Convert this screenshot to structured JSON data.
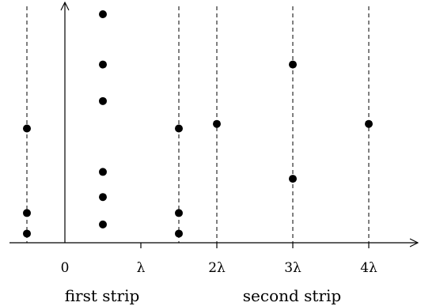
{
  "figure": {
    "x_ticks": [
      {
        "value": 0,
        "label": "0"
      },
      {
        "value": 1,
        "label": "λ"
      },
      {
        "value": 2,
        "label": "2λ"
      },
      {
        "value": 3,
        "label": "3λ"
      },
      {
        "value": 4,
        "label": "4λ"
      }
    ],
    "dashed_lines_at": [
      -0.5,
      1.5,
      2,
      3,
      4
    ],
    "strip_labels": {
      "first": "first strip",
      "second": "second strip"
    },
    "points": [
      {
        "x": -0.5,
        "y": 0.5
      },
      {
        "x": -0.5,
        "y": 0.13
      },
      {
        "x": -0.5,
        "y": 0.04
      },
      {
        "x": 0.5,
        "y": 1.0
      },
      {
        "x": 0.5,
        "y": 0.78
      },
      {
        "x": 0.5,
        "y": 0.62
      },
      {
        "x": 0.5,
        "y": 0.31
      },
      {
        "x": 0.5,
        "y": 0.2
      },
      {
        "x": 0.5,
        "y": 0.08
      },
      {
        "x": 1.5,
        "y": 0.5
      },
      {
        "x": 1.5,
        "y": 0.13
      },
      {
        "x": 1.5,
        "y": 0.04
      },
      {
        "x": 2,
        "y": 0.52
      },
      {
        "x": 3,
        "y": 0.78
      },
      {
        "x": 3,
        "y": 0.28
      },
      {
        "x": 4,
        "y": 0.52
      }
    ]
  }
}
